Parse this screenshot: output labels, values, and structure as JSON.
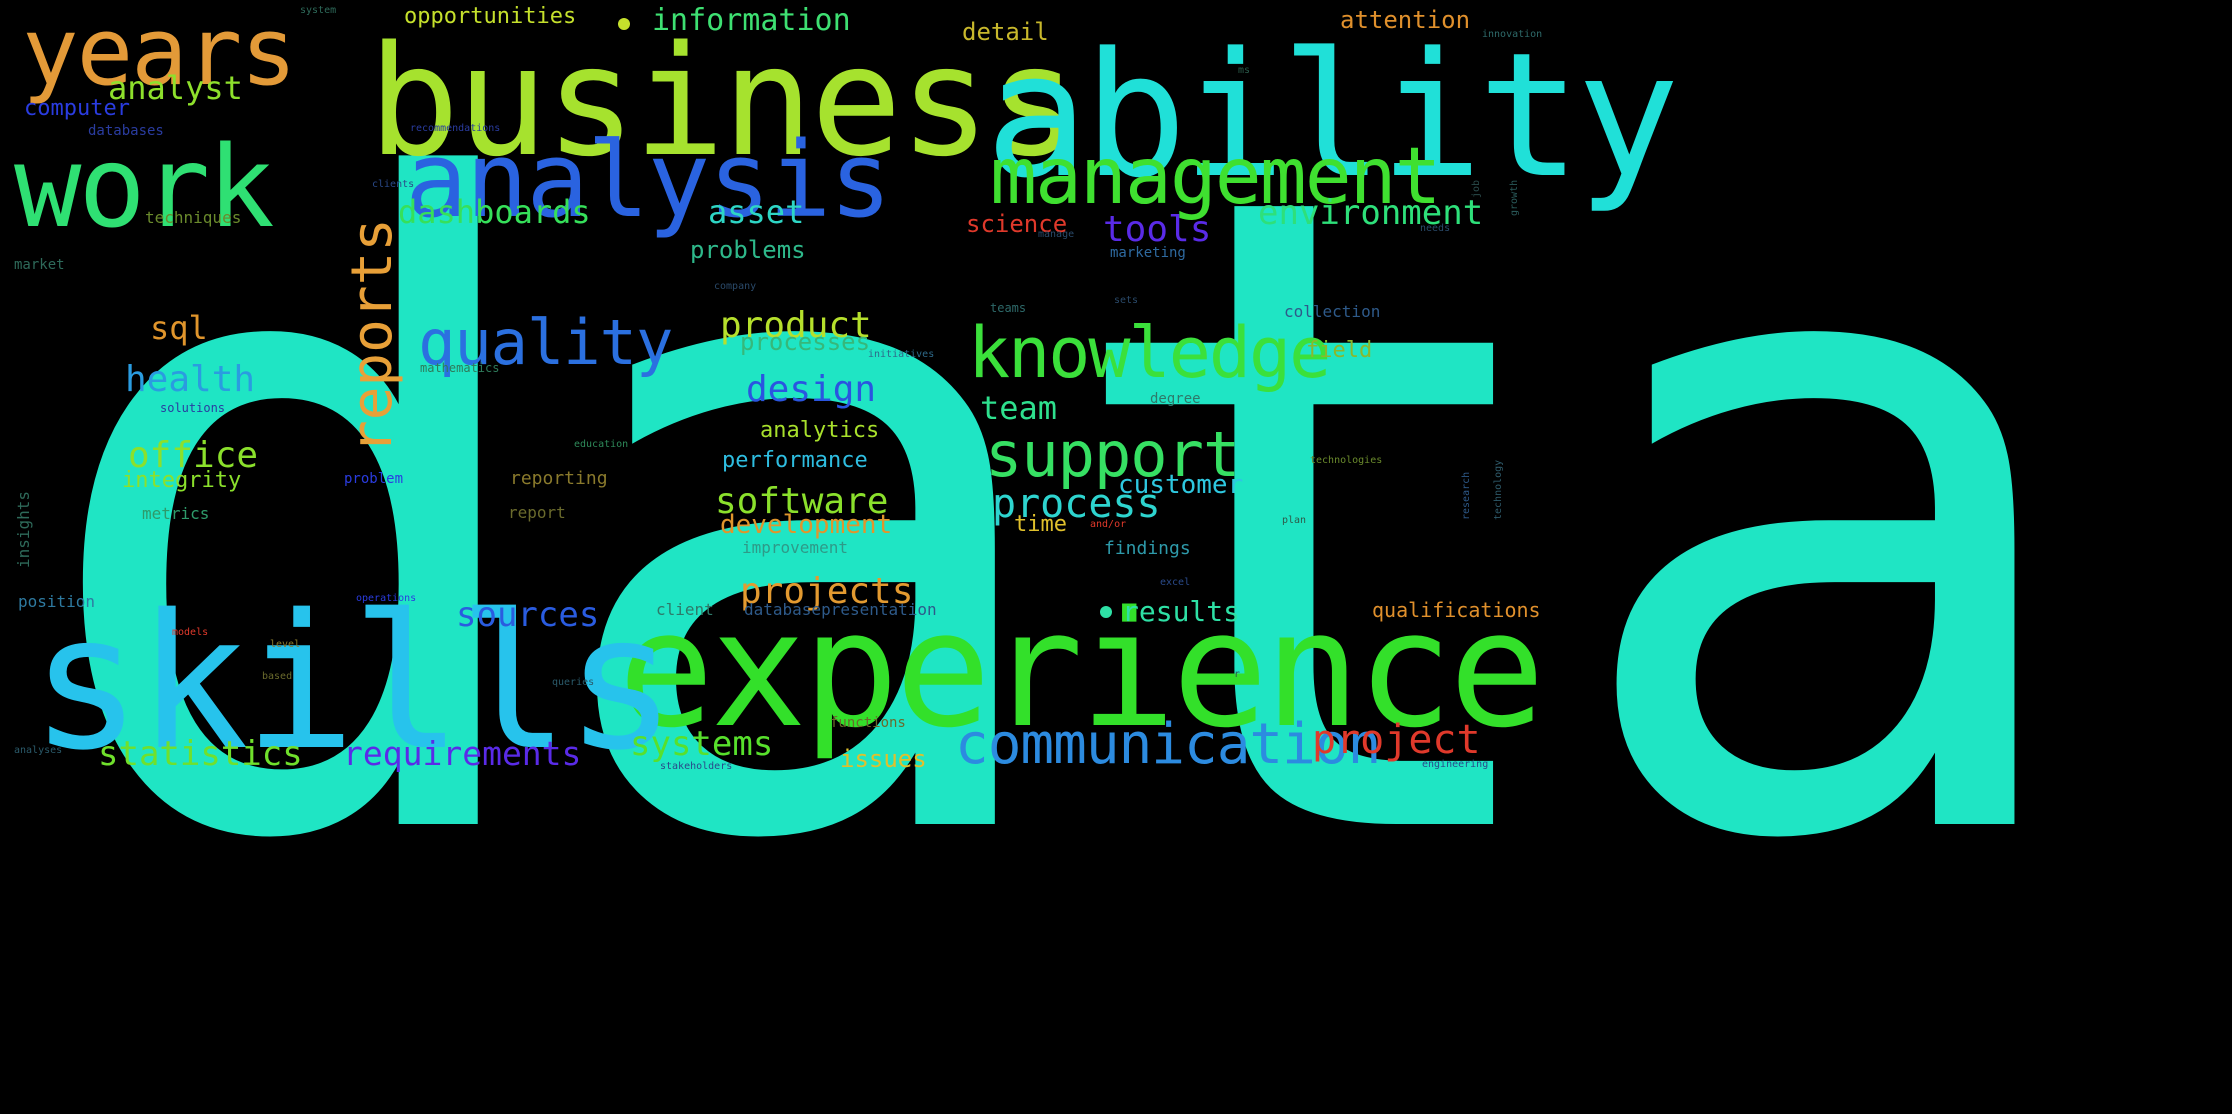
{
  "background_color": "#000000",
  "words": [
    {
      "text": "data",
      "color": "#1FE5C4"
    },
    {
      "text": "business",
      "color": "#A6E22E"
    },
    {
      "text": "ability",
      "color": "#20E0D8"
    },
    {
      "text": "experience",
      "color": "#33E02A"
    },
    {
      "text": "skills",
      "color": "#27C3EC"
    },
    {
      "text": "analysis",
      "color": "#2A63E0"
    },
    {
      "text": "work",
      "color": "#2FE073"
    },
    {
      "text": "years",
      "color": "#E39A38"
    },
    {
      "text": "management",
      "color": "#3FE030"
    },
    {
      "text": "knowledge",
      "color": "#3BE03B"
    },
    {
      "text": "communication",
      "color": "#2C8BE0"
    },
    {
      "text": "support",
      "color": "#36E063"
    },
    {
      "text": "quality",
      "color": "#2B70E0"
    },
    {
      "text": "reports",
      "color": "#E8A038"
    },
    {
      "text": "process",
      "color": "#2ED4CF"
    },
    {
      "text": "requirements",
      "color": "#5A2BE8"
    },
    {
      "text": "statistics",
      "color": "#70E02C"
    },
    {
      "text": "systems",
      "color": "#58E02C"
    },
    {
      "text": "projects",
      "color": "#E39A30"
    },
    {
      "text": "sources",
      "color": "#2A5CE0"
    },
    {
      "text": "software",
      "color": "#8BE02C"
    },
    {
      "text": "project",
      "color": "#E0392B"
    },
    {
      "text": "health",
      "color": "#2A9CE0"
    },
    {
      "text": "office",
      "color": "#8BE02C"
    },
    {
      "text": "product",
      "color": "#B6E02C"
    },
    {
      "text": "design",
      "color": "#2A55E0"
    },
    {
      "text": "environment",
      "color": "#2EE07A"
    },
    {
      "text": "dashboards",
      "color": "#36E05A"
    },
    {
      "text": "analyst",
      "color": "#8EE02C"
    },
    {
      "text": "information",
      "color": "#3EE072"
    },
    {
      "text": "opportunities",
      "color": "#C5E02C"
    },
    {
      "text": "tools",
      "color": "#5A2BE8"
    },
    {
      "text": "asset",
      "color": "#2ED6C5"
    },
    {
      "text": "team",
      "color": "#2EE08E"
    },
    {
      "text": "sql",
      "color": "#E0952C"
    },
    {
      "text": "customer",
      "color": "#2EC8E0"
    },
    {
      "text": "development",
      "color": "#E0952C"
    },
    {
      "text": "results",
      "color": "#2EE0A5"
    },
    {
      "text": "issues",
      "color": "#E0C02C"
    },
    {
      "text": "analytics",
      "color": "#A8E02C"
    },
    {
      "text": "performance",
      "color": "#2EBDE0"
    },
    {
      "text": "integrity",
      "color": "#8BE02C"
    },
    {
      "text": "problems",
      "color": "#2EB88A"
    },
    {
      "text": "processes",
      "color": "#36B87A"
    },
    {
      "text": "science",
      "color": "#E0392B"
    },
    {
      "text": "attention",
      "color": "#E0902C"
    },
    {
      "text": "detail",
      "color": "#C8B82C"
    },
    {
      "text": "qualifications",
      "color": "#E0902C"
    },
    {
      "text": "time",
      "color": "#E0C02C"
    },
    {
      "text": "computer",
      "color": "#2A3CE0"
    },
    {
      "text": "field",
      "color": "#8BB82C"
    },
    {
      "text": "findings",
      "color": "#2E9AAA"
    },
    {
      "text": "position",
      "color": "#2E7AA0"
    },
    {
      "text": "improvement",
      "color": "#2E9A88"
    },
    {
      "text": "metrics",
      "color": "#2E9A6A"
    },
    {
      "text": "techniques",
      "color": "#6A8A2C"
    },
    {
      "text": "reporting",
      "color": "#8A7A2C"
    },
    {
      "text": "report",
      "color": "#6A6A2C"
    },
    {
      "text": "databases",
      "color": "#2A3CA0"
    },
    {
      "text": "market",
      "color": "#2E6A5A"
    },
    {
      "text": "marketing",
      "color": "#2E6AA0"
    },
    {
      "text": "degree",
      "color": "#2E7A6A"
    },
    {
      "text": "collection",
      "color": "#2E5A8A"
    },
    {
      "text": "client",
      "color": "#2E7A6A"
    },
    {
      "text": "databasepresentation",
      "color": "#2E5A8A"
    },
    {
      "text": "functions",
      "color": "#6A6A2C"
    },
    {
      "text": "solutions",
      "color": "#2A3CA0"
    },
    {
      "text": "mathematics",
      "color": "#2E7A5A"
    },
    {
      "text": "teams",
      "color": "#2E6A6A"
    },
    {
      "text": "initiatives",
      "color": "#2E6A8A"
    },
    {
      "text": "problem",
      "color": "#2A3CE0"
    },
    {
      "text": "education",
      "color": "#2E8A5A"
    },
    {
      "text": "technologies",
      "color": "#6A8A2C"
    },
    {
      "text": "company",
      "color": "#2A4A6A"
    },
    {
      "text": "clients",
      "color": "#2A4A8A"
    },
    {
      "text": "recommendations",
      "color": "#2A3CA0"
    },
    {
      "text": "operations",
      "color": "#2A3CE0"
    },
    {
      "text": "models",
      "color": "#E0392B"
    },
    {
      "text": "level",
      "color": "#8A7A2C"
    },
    {
      "text": "queries",
      "color": "#2A5A6A"
    },
    {
      "text": "stakeholders",
      "color": "#2A4A8A"
    },
    {
      "text": "analyses",
      "color": "#2A5A6A"
    },
    {
      "text": "based",
      "color": "#6A6A2C"
    },
    {
      "text": "research",
      "color": "#2E5A8A"
    },
    {
      "text": "technology",
      "color": "#2E5A6A"
    },
    {
      "text": "insights",
      "color": "#2E6A5A"
    },
    {
      "text": "plan",
      "color": "#2E5A4A"
    },
    {
      "text": "engineering",
      "color": "#2A4A8A"
    },
    {
      "text": "excel",
      "color": "#2A4A8A"
    },
    {
      "text": "and/or",
      "color": "#E0392B"
    },
    {
      "text": "needs",
      "color": "#2A4A6A"
    },
    {
      "text": "growth",
      "color": "#2A5A5A"
    },
    {
      "text": "manage",
      "color": "#2A4A6A"
    },
    {
      "text": "innovation",
      "color": "#2E6A6A"
    },
    {
      "text": "system",
      "color": "#2E6A5A"
    },
    {
      "text": "job",
      "color": "#2A4A4A"
    },
    {
      "text": "ms",
      "color": "#2A5A4A"
    },
    {
      "text": "sets",
      "color": "#2A4A6A"
    },
    {
      "text": "r",
      "color": "#2A5A4A"
    }
  ]
}
